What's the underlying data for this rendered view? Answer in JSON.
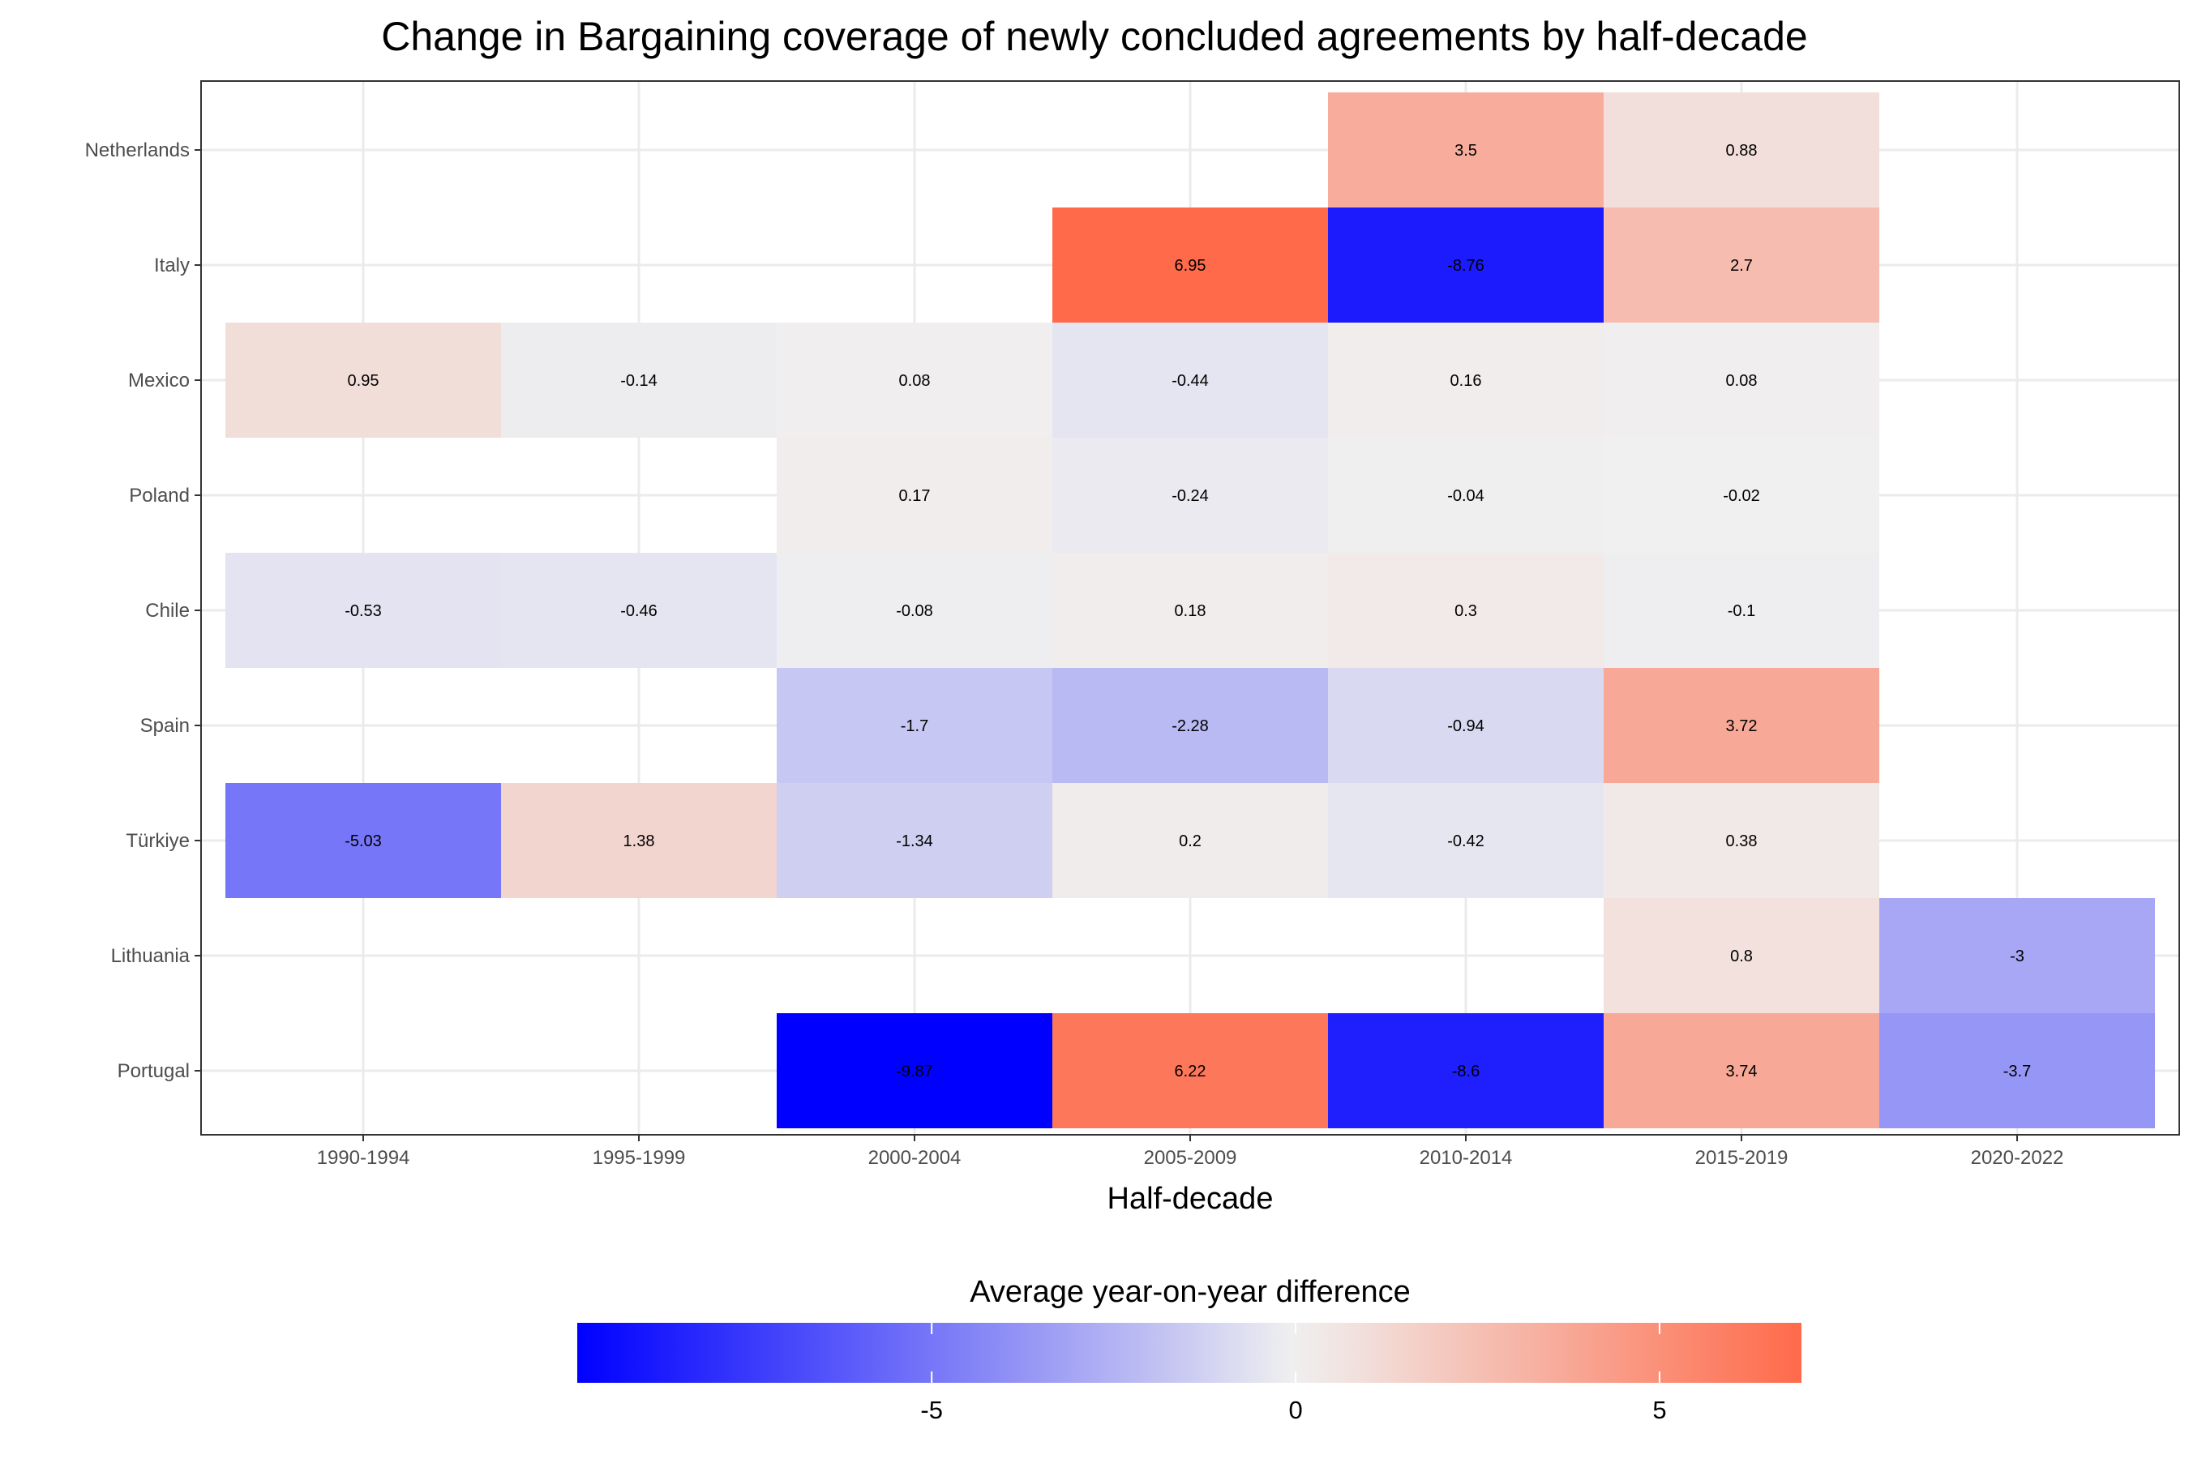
{
  "chart_data": {
    "type": "heatmap",
    "title": "Change in Bargaining coverage of newly concluded agreements by half-decade",
    "xlabel": "Half-decade",
    "ylabel": "",
    "x_categories": [
      "1990-1994",
      "1995-1999",
      "2000-2004",
      "2005-2009",
      "2010-2014",
      "2015-2019",
      "2020-2022"
    ],
    "y_categories": [
      "Netherlands",
      "Italy",
      "Mexico",
      "Poland",
      "Chile",
      "Spain",
      "Türkiye",
      "Lithuania",
      "Portugal"
    ],
    "cells": [
      {
        "y": "Netherlands",
        "x": "2010-2014",
        "value": 3.5,
        "label": "3.5"
      },
      {
        "y": "Netherlands",
        "x": "2015-2019",
        "value": 0.88,
        "label": "0.88"
      },
      {
        "y": "Italy",
        "x": "2005-2009",
        "value": 6.95,
        "label": "6.95"
      },
      {
        "y": "Italy",
        "x": "2010-2014",
        "value": -8.76,
        "label": "-8.76"
      },
      {
        "y": "Italy",
        "x": "2015-2019",
        "value": 2.7,
        "label": "2.7"
      },
      {
        "y": "Mexico",
        "x": "1990-1994",
        "value": 0.95,
        "label": "0.95"
      },
      {
        "y": "Mexico",
        "x": "1995-1999",
        "value": -0.14,
        "label": "-0.14"
      },
      {
        "y": "Mexico",
        "x": "2000-2004",
        "value": 0.08,
        "label": "0.08"
      },
      {
        "y": "Mexico",
        "x": "2005-2009",
        "value": -0.44,
        "label": "-0.44"
      },
      {
        "y": "Mexico",
        "x": "2010-2014",
        "value": 0.16,
        "label": "0.16"
      },
      {
        "y": "Mexico",
        "x": "2015-2019",
        "value": 0.08,
        "label": "0.08"
      },
      {
        "y": "Poland",
        "x": "2000-2004",
        "value": 0.17,
        "label": "0.17"
      },
      {
        "y": "Poland",
        "x": "2005-2009",
        "value": -0.24,
        "label": "-0.24"
      },
      {
        "y": "Poland",
        "x": "2010-2014",
        "value": -0.04,
        "label": "-0.04"
      },
      {
        "y": "Poland",
        "x": "2015-2019",
        "value": -0.02,
        "label": "-0.02"
      },
      {
        "y": "Chile",
        "x": "1990-1994",
        "value": -0.53,
        "label": "-0.53"
      },
      {
        "y": "Chile",
        "x": "1995-1999",
        "value": -0.46,
        "label": "-0.46"
      },
      {
        "y": "Chile",
        "x": "2000-2004",
        "value": -0.08,
        "label": "-0.08"
      },
      {
        "y": "Chile",
        "x": "2005-2009",
        "value": 0.18,
        "label": "0.18"
      },
      {
        "y": "Chile",
        "x": "2010-2014",
        "value": 0.3,
        "label": "0.3"
      },
      {
        "y": "Chile",
        "x": "2015-2019",
        "value": -0.1,
        "label": "-0.1"
      },
      {
        "y": "Spain",
        "x": "2000-2004",
        "value": -1.7,
        "label": "-1.7"
      },
      {
        "y": "Spain",
        "x": "2005-2009",
        "value": -2.28,
        "label": "-2.28"
      },
      {
        "y": "Spain",
        "x": "2010-2014",
        "value": -0.94,
        "label": "-0.94"
      },
      {
        "y": "Spain",
        "x": "2015-2019",
        "value": 3.72,
        "label": "3.72"
      },
      {
        "y": "Türkiye",
        "x": "1990-1994",
        "value": -5.03,
        "label": "-5.03"
      },
      {
        "y": "Türkiye",
        "x": "1995-1999",
        "value": 1.38,
        "label": "1.38"
      },
      {
        "y": "Türkiye",
        "x": "2000-2004",
        "value": -1.34,
        "label": "-1.34"
      },
      {
        "y": "Türkiye",
        "x": "2005-2009",
        "value": 0.2,
        "label": "0.2"
      },
      {
        "y": "Türkiye",
        "x": "2010-2014",
        "value": -0.42,
        "label": "-0.42"
      },
      {
        "y": "Türkiye",
        "x": "2015-2019",
        "value": 0.38,
        "label": "0.38"
      },
      {
        "y": "Lithuania",
        "x": "2015-2019",
        "value": 0.8,
        "label": "0.8"
      },
      {
        "y": "Lithuania",
        "x": "2020-2022",
        "value": -3,
        "label": "-3"
      },
      {
        "y": "Portugal",
        "x": "2000-2004",
        "value": -9.87,
        "label": "-9.87"
      },
      {
        "y": "Portugal",
        "x": "2005-2009",
        "value": 6.22,
        "label": "6.22"
      },
      {
        "y": "Portugal",
        "x": "2010-2014",
        "value": -8.6,
        "label": "-8.6"
      },
      {
        "y": "Portugal",
        "x": "2015-2019",
        "value": 3.74,
        "label": "3.74"
      },
      {
        "y": "Portugal",
        "x": "2020-2022",
        "value": -3.7,
        "label": "-3.7"
      }
    ],
    "grid": true,
    "legend": {
      "title": "Average year-on-year difference",
      "placement": "bottom",
      "range": [
        -9.87,
        6.95
      ],
      "ticks": [
        {
          "value": -5,
          "label": "-5"
        },
        {
          "value": 0,
          "label": "0"
        },
        {
          "value": 5,
          "label": "5"
        }
      ],
      "low_color": "#0000ff",
      "mid_color": "#f0f0f0",
      "high_color": "#ff6a4a",
      "midpoint": 0
    }
  }
}
